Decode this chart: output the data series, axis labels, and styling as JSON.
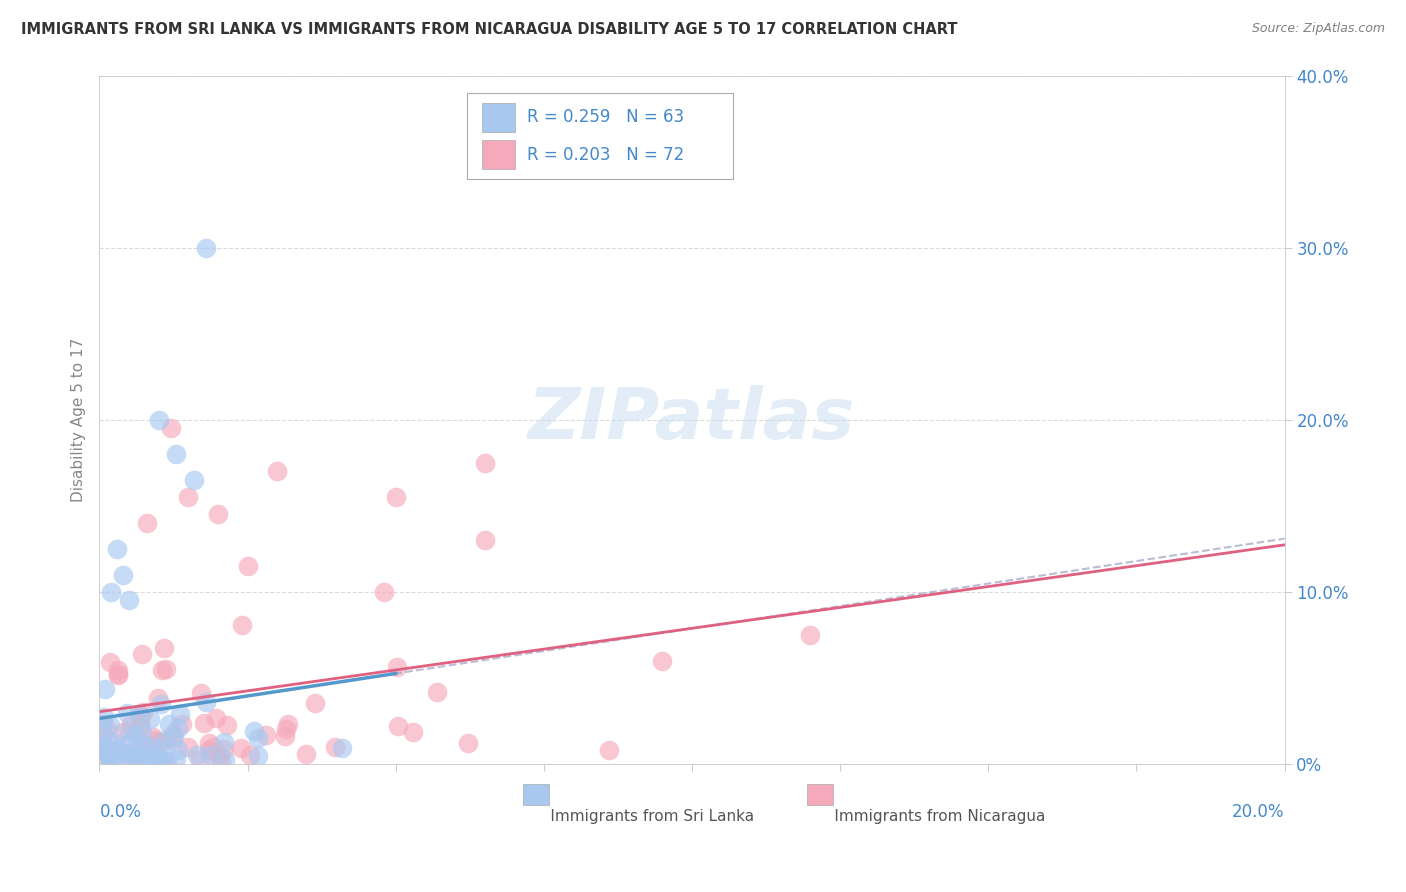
{
  "title": "IMMIGRANTS FROM SRI LANKA VS IMMIGRANTS FROM NICARAGUA DISABILITY AGE 5 TO 17 CORRELATION CHART",
  "source": "Source: ZipAtlas.com",
  "ylabel": "Disability Age 5 to 17",
  "right_yticks": [
    0.0,
    0.1,
    0.2,
    0.3,
    0.4
  ],
  "right_yticklabels": [
    "0%",
    "10.0%",
    "20.0%",
    "30.0%",
    "40.0%"
  ],
  "xlim": [
    0.0,
    0.2
  ],
  "ylim": [
    0.0,
    0.4
  ],
  "sri_lanka_R": 0.259,
  "sri_lanka_N": 63,
  "nicaragua_R": 0.203,
  "nicaragua_N": 72,
  "sri_lanka_color": "#A8C8F0",
  "nicaragua_color": "#F5AABB",
  "sri_lanka_line_color": "#5599CC",
  "nicaragua_line_color": "#E06080",
  "watermark_text": "ZIPatlas",
  "watermark_color": "#C8DCF0",
  "watermark_alpha": 0.5,
  "background_color": "#FFFFFF",
  "text_color_blue": "#4488CC",
  "text_color_pink": "#CC4466",
  "grid_color": "#CCCCCC",
  "axis_label_color": "#888888",
  "title_color": "#333333"
}
